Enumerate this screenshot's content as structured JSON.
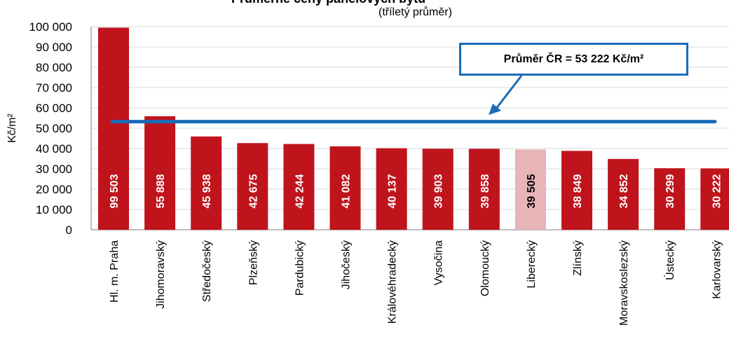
{
  "chart_data": {
    "type": "bar",
    "title": "",
    "subtitle": "(tříletý průměr)",
    "ylabel": "Kč/m²",
    "xlabel": "",
    "ylim": [
      0,
      100000
    ],
    "yticks": [
      "0",
      "10 000",
      "20 000",
      "30 000",
      "40 000",
      "50 000",
      "60 000",
      "70 000",
      "80 000",
      "90 000",
      "100 000"
    ],
    "categories": [
      "Hl. m. Praha",
      "Jihomoravský",
      "Středočeský",
      "Plzeňský",
      "Pardubický",
      "Jihočeský",
      "Královéhradecký",
      "Vysočina",
      "Olomoucký",
      "Liberecký",
      "Zlínský",
      "Moravskoslezský",
      "Ústecký",
      "Karlovarský"
    ],
    "values": [
      99503,
      55888,
      45938,
      42675,
      42244,
      41082,
      40137,
      39903,
      39858,
      39505,
      38849,
      34852,
      30299,
      30222
    ],
    "value_labels": [
      "99 503",
      "55 888",
      "45 938",
      "42 675",
      "42 244",
      "41 082",
      "40 137",
      "39 903",
      "39 858",
      "39 505",
      "38 849",
      "34 852",
      "30 299",
      "30 222"
    ],
    "highlight_index": 9,
    "reference_line": {
      "value": 53222,
      "label": "Průměr ČR = 53 222 Kč/m²"
    },
    "grid": true,
    "colors": {
      "bar": "#c0141c",
      "bar_highlight": "#e8b4b8",
      "reference": "#1a6bb8",
      "label_text": "#ffffff",
      "label_text_highlight": "#000000"
    }
  }
}
